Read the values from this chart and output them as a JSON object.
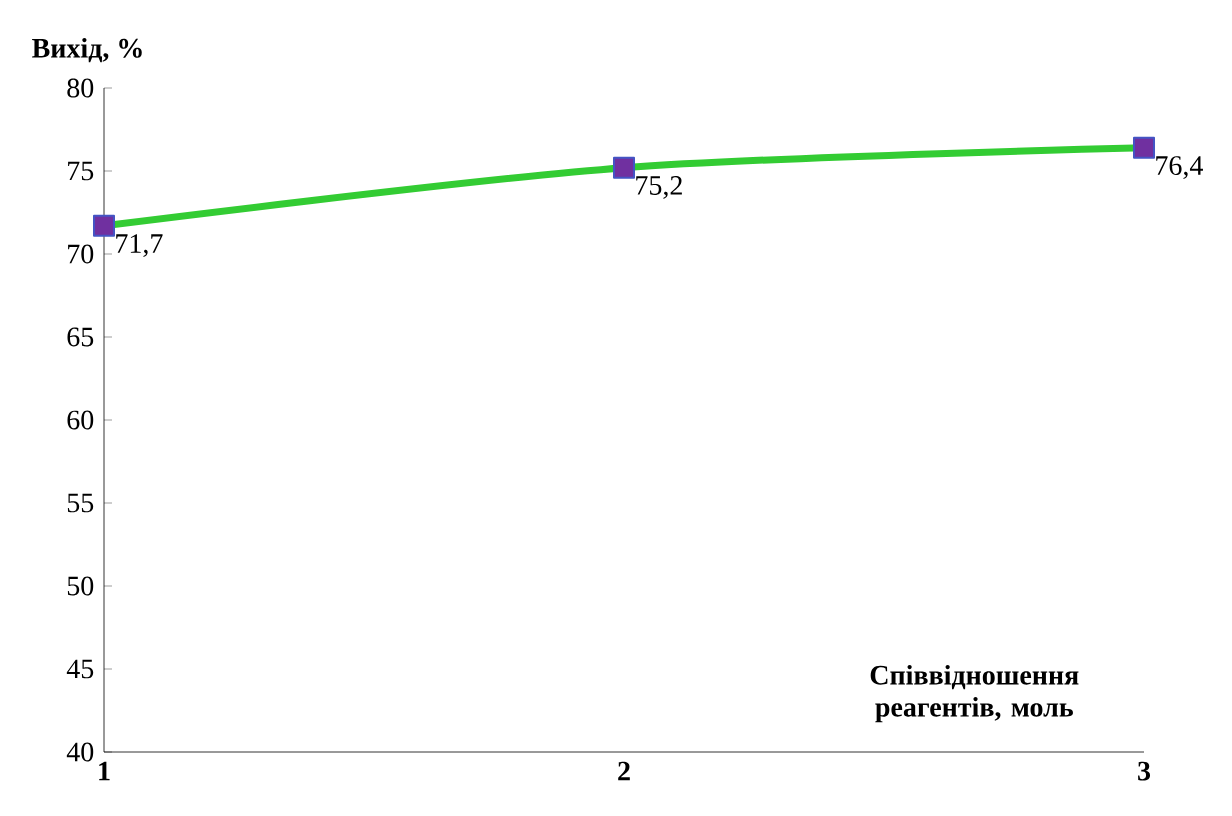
{
  "chart_data": {
    "type": "line",
    "xlabel": "Співвідношення реагентів, моль",
    "ylabel": "Вихід, %",
    "x": [
      1,
      2,
      3
    ],
    "xlim": [
      1,
      3
    ],
    "xticks": [
      1,
      2,
      3
    ],
    "ylim": [
      40,
      80
    ],
    "yticks": [
      40,
      45,
      50,
      55,
      60,
      65,
      70,
      75,
      80
    ],
    "series": [
      {
        "color": "#33cc33",
        "values": [
          71.7,
          75.2,
          76.4
        ],
        "value_labels": [
          "71,7",
          "75,2",
          "76,4"
        ]
      }
    ],
    "marker": "square",
    "grid": false
  }
}
